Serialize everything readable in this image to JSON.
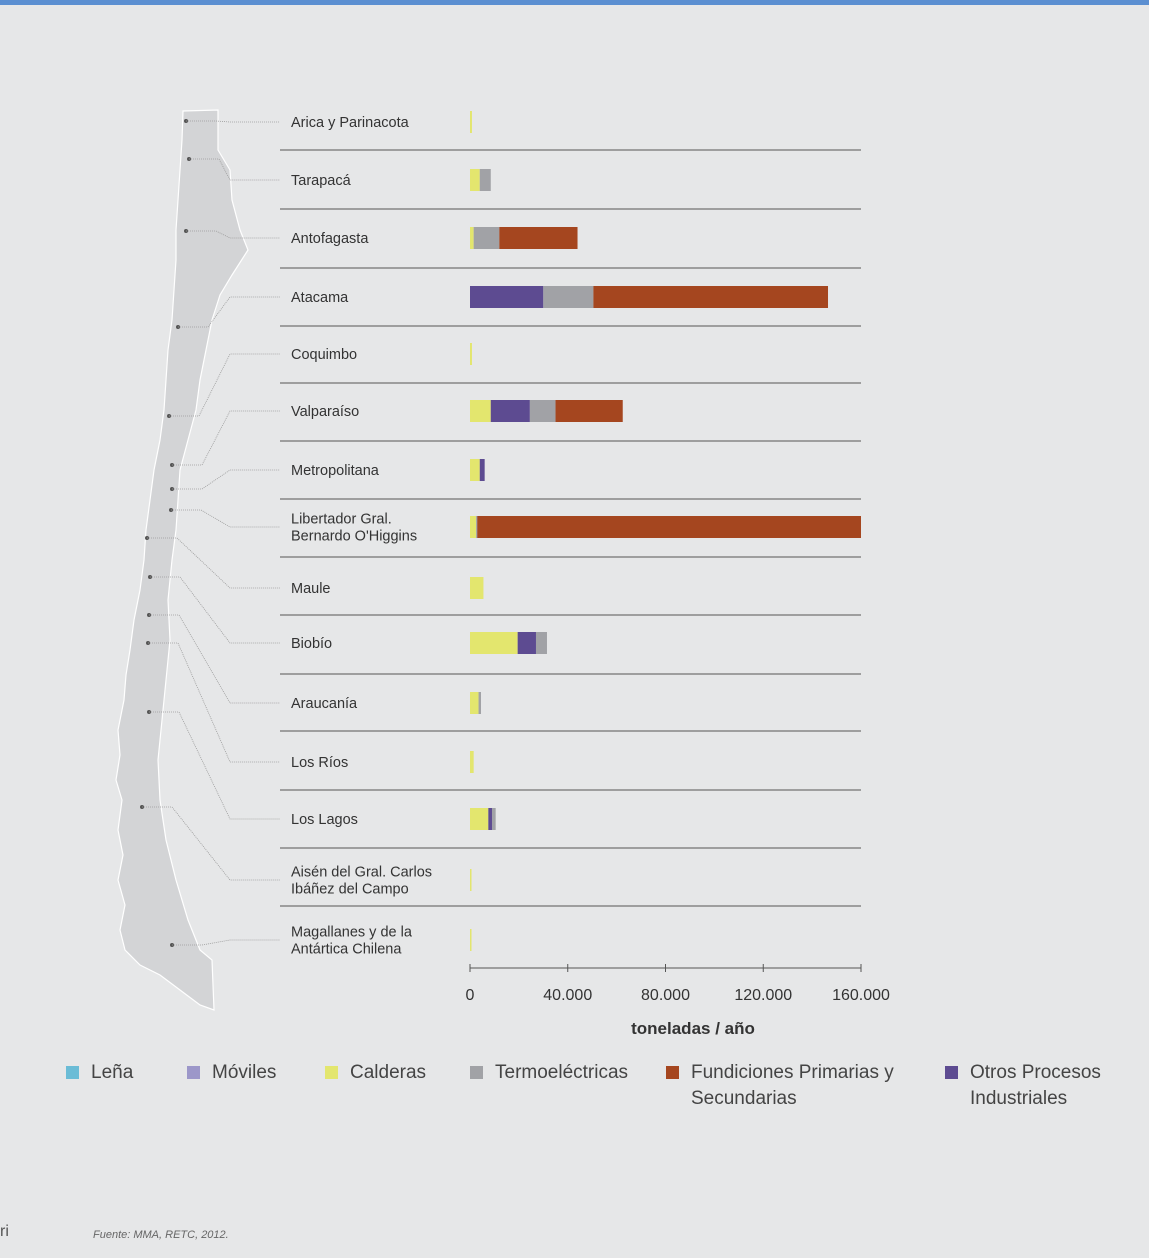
{
  "chart_data": {
    "type": "bar",
    "orientation": "horizontal",
    "stacked": true,
    "xlabel": "toneladas / año",
    "xlim": [
      0,
      160000
    ],
    "xticks": [
      0,
      40000,
      80000,
      120000,
      160000
    ],
    "xtick_labels": [
      "0",
      "40.000",
      "80.000",
      "120.000",
      "160.000"
    ],
    "categories": [
      "Arica y Parinacota",
      "Tarapacá",
      "Antofagasta",
      "Atacama",
      "Coquimbo",
      "Valparaíso",
      "Metropolitana",
      "Libertador Gral.\nBernardo O'Higgins",
      "Maule",
      "Biobío",
      "Araucanía",
      "Los Ríos",
      "Los Lagos",
      "Aisén del Gral. Carlos\nIbáñez del Campo",
      "Magallanes y de la\nAntártica Chilena"
    ],
    "series": [
      {
        "name": "Leña",
        "color": "#6bbcd6",
        "values": [
          0,
          0,
          0,
          0,
          0,
          0,
          0,
          0,
          0,
          0,
          0,
          0,
          0,
          0,
          0
        ]
      },
      {
        "name": "Móviles",
        "color": "#9c97c9",
        "values": [
          0,
          0,
          0,
          0,
          0,
          0,
          0,
          0,
          0,
          0,
          0,
          0,
          0,
          0,
          0
        ]
      },
      {
        "name": "Calderas",
        "color": "#e3e66e",
        "values": [
          800,
          4000,
          1500,
          0,
          800,
          8500,
          4000,
          2500,
          5500,
          19500,
          3500,
          1500,
          7500,
          600,
          400
        ]
      },
      {
        "name": "Termoeléctricas",
        "color": "#a1a2a6",
        "values": [
          0,
          4500,
          10500,
          20500,
          0,
          10500,
          0,
          500,
          0,
          4500,
          1000,
          0,
          1500,
          0,
          0
        ]
      },
      {
        "name": "Fundiciones Primarias y Secundarias",
        "color": "#a5461f",
        "values": [
          0,
          0,
          32000,
          96000,
          0,
          27500,
          0,
          157000,
          0,
          0,
          0,
          0,
          0,
          0,
          0
        ]
      },
      {
        "name": "Otros Procesos Industriales",
        "color": "#5d4b91",
        "values": [
          0,
          0,
          0,
          30000,
          0,
          16000,
          2000,
          0,
          0,
          7500,
          0,
          0,
          1500,
          0,
          0
        ]
      }
    ],
    "stack_order": [
      "Calderas",
      "Otros Procesos Industriales",
      "Termoeléctricas",
      "Fundiciones Primarias y Secundarias",
      "Móviles",
      "Leña"
    ],
    "legend_position": "bottom",
    "grid": false
  },
  "legend": [
    {
      "label": "Leña",
      "color": "#6bbcd6"
    },
    {
      "label": "Móviles",
      "color": "#9c97c9"
    },
    {
      "label": "Calderas",
      "color": "#e3e66e"
    },
    {
      "label": "Termoeléctricas",
      "color": "#a1a2a6"
    },
    {
      "label": "Fundiciones  Primarias y\nSecundarias",
      "color": "#a5461f"
    },
    {
      "label": "Otros Procesos\nIndustriales",
      "color": "#5d4b91"
    }
  ],
  "source_note": "Fuente: MMA, RETC, 2012.",
  "edge_text": "ri"
}
